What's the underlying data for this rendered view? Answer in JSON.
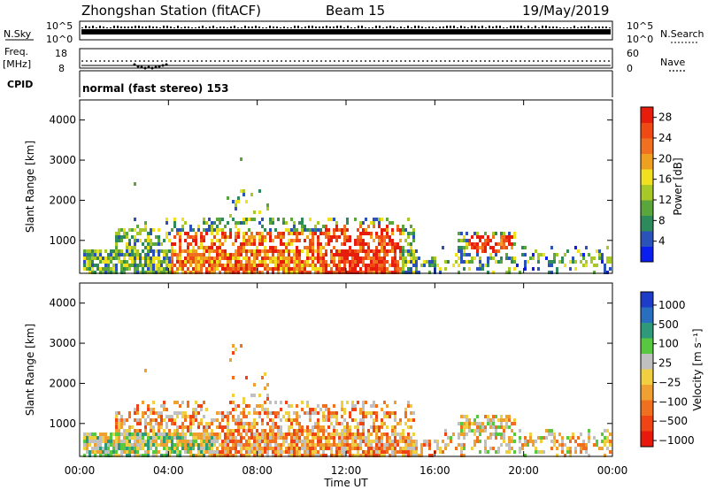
{
  "header": {
    "title": "Zhongshan Station (fitACF)",
    "beam": "Beam 15",
    "date": "19/May/2019"
  },
  "strip_panels": {
    "nsky": {
      "label": "N.Sky",
      "tick_top": "10^5",
      "tick_bottom": "10^0",
      "right_label": "N.Search",
      "right_tick_top": "10^5",
      "right_tick_bottom": "10^0"
    },
    "freq": {
      "label_line1": "Freq.",
      "label_line2": "[MHz]",
      "tick_top": "18",
      "tick_bottom": "8",
      "right_label": "Nave",
      "right_tick_top": "60",
      "right_tick_bottom": "0"
    },
    "cpid": {
      "label": "CPID",
      "text": "normal (fast stereo) 153"
    }
  },
  "colors": {
    "power": [
      "#0a1ef0",
      "#2a52b8",
      "#2e8a5a",
      "#5aa63c",
      "#a8c828",
      "#f0e020",
      "#f0a020",
      "#f07020",
      "#f04a14",
      "#e61c0c"
    ],
    "velocity": [
      "#1e3cc8",
      "#2a6ec0",
      "#2e9a7a",
      "#58c840",
      "#c0c0c0",
      "#f0d040",
      "#f0a030",
      "#f07020",
      "#f04414",
      "#e8180c"
    ]
  },
  "chart_data": [
    {
      "type": "heatmap",
      "parameter": "power",
      "ylabel": "Slant Range [km]",
      "xlim_hours": [
        0,
        24
      ],
      "ylim_km": [
        180,
        4500
      ],
      "y_ticks": [
        "1000",
        "2000",
        "3000",
        "4000"
      ],
      "colorbar": {
        "label": "Power [dB]",
        "range": [
          0,
          30
        ],
        "ticks": [
          "4",
          "8",
          "12",
          "16",
          "20",
          "24",
          "28"
        ]
      },
      "grid": false
    },
    {
      "type": "heatmap",
      "parameter": "velocity",
      "ylabel": "Slant Range [km]",
      "xlabel": "Time UT",
      "xlim_hours": [
        0,
        24
      ],
      "ylim_km": [
        180,
        4500
      ],
      "x_ticks": [
        "00:00",
        "04:00",
        "08:00",
        "12:00",
        "16:00",
        "20:00",
        "00:00"
      ],
      "y_ticks": [
        "1000",
        "2000",
        "3000",
        "4000"
      ],
      "colorbar": {
        "label": "Velocity [m s⁻¹]",
        "ticks": [
          "1000",
          "500",
          "100",
          "25",
          "−25",
          "−100",
          "−500",
          "−1000"
        ]
      },
      "grid": false
    }
  ]
}
